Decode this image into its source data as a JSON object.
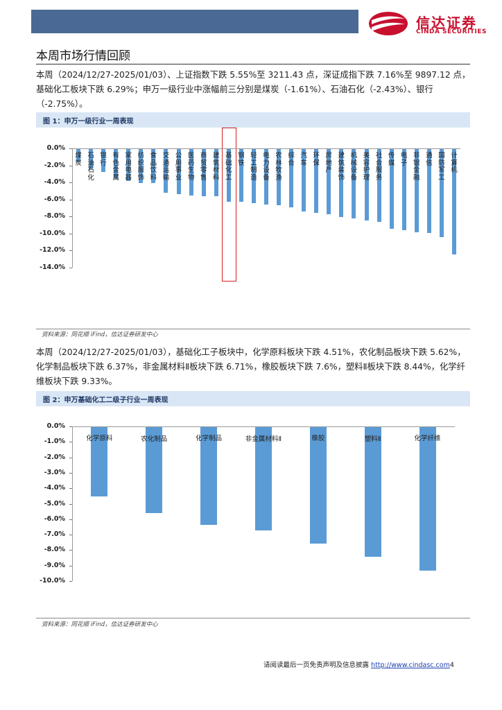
{
  "header": {
    "logo_cn": "信达证券",
    "logo_en": "CINDA SECURITIES",
    "brand_color": "#c8102e",
    "bar_color": "#4a6a95"
  },
  "section_title": "本周市场行情回顾",
  "para1": "本周（2024/12/27-2025/01/03）、上证指数下跌 5.55%至 3211.43 点，深证成指下跌 7.16%至 9897.12 点，基础化工板块下跌 6.29%；申万一级行业中涨幅前三分别是煤炭（-1.61%）、石油石化（-2.43%）、银行（-2.75%）。",
  "fig1": {
    "title": "图 1：申万一级行业一周表现",
    "source": "资料来源：同花顺 iFind，信达证券研发中心"
  },
  "para2": "本周（2024/12/27-2025/01/03），基础化工子板块中，化学原料板块下跌 4.51%，农化制品板块下跌 5.62%，化学制品板块下跌 6.37%，非金属材料Ⅱ板块下跌 6.71%，橡胶板块下跌 7.6%，塑料Ⅱ板块下跌 8.44%，化学纤维板块下跌 9.33%。",
  "fig2": {
    "title": "图 2：申万基础化工二级子行业一周表现",
    "source": "资料来源：同花顺 iFind，信达证券研发中心"
  },
  "footer": {
    "text": "请阅读最后一页免责声明及信息披露",
    "url": "http://www.cindasc.com",
    "page": "4"
  },
  "chart_data": [
    {
      "type": "bar",
      "title": "",
      "categories": [
        "煤炭",
        "石油石化",
        "银行",
        "有色金属",
        "家用电器",
        "纺织服饰",
        "食品饮料",
        "交通运输",
        "公用事业",
        "医药生物",
        "商贸零售",
        "建筑材料",
        "基础化工",
        "钢铁",
        "轻工制造",
        "电力设备",
        "农林牧渔",
        "综合",
        "汽车",
        "环保",
        "房地产",
        "建筑装饰",
        "机械设备",
        "美容护理",
        "社会服务",
        "传媒",
        "电子",
        "非银金融",
        "通信",
        "国防军工",
        "计算机"
      ],
      "values": [
        -1.61,
        -2.43,
        -2.75,
        -3.5,
        -3.8,
        -4.05,
        -4.1,
        -5.2,
        -5.35,
        -5.5,
        -5.6,
        -5.65,
        -6.29,
        -6.3,
        -6.45,
        -6.6,
        -6.7,
        -6.9,
        -7.4,
        -7.55,
        -7.7,
        -8.05,
        -8.2,
        -8.5,
        -8.6,
        -9.45,
        -9.6,
        -9.85,
        -9.95,
        -10.45,
        -12.45
      ],
      "highlight": "基础化工",
      "highlight_color": "#d21e1e",
      "ylim": [
        -14,
        0
      ],
      "yticks": [
        "0.0%",
        "-2.0%",
        "-4.0%",
        "-6.0%",
        "-8.0%",
        "-10.0%",
        "-12.0%",
        "-14.0%"
      ],
      "bar_color": "#5b9bd5",
      "grid": false
    },
    {
      "type": "bar",
      "title": "",
      "categories": [
        "化学原料",
        "农化制品",
        "化学制品",
        "非金属材料Ⅱ",
        "橡胶",
        "塑料Ⅱ",
        "化学纤维"
      ],
      "values": [
        -4.51,
        -5.62,
        -6.37,
        -6.71,
        -7.6,
        -8.44,
        -9.33
      ],
      "ylim": [
        -10,
        0
      ],
      "yticks": [
        "0.0%",
        "-1.0%",
        "-2.0%",
        "-3.0%",
        "-4.0%",
        "-5.0%",
        "-6.0%",
        "-7.0%",
        "-8.0%",
        "-9.0%",
        "-10.0%"
      ],
      "bar_color": "#5b9bd5",
      "grid": false
    }
  ]
}
